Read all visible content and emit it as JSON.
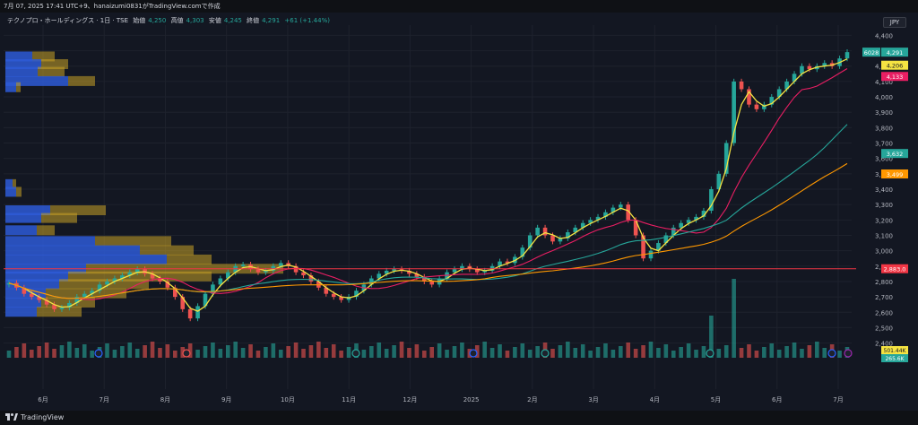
{
  "caption": "7月 07, 2025 17:41 UTC+9、hanaizumi0831がTradingView.comで作成",
  "legend": {
    "symbol": "テクノプロ・ホールディングス · 1日 · TSE",
    "open_label": "始値",
    "open": "4,250",
    "high_label": "高値",
    "high": "4,303",
    "low_label": "安値",
    "low": "4,245",
    "close_label": "終値",
    "close": "4,291",
    "change": "+61 (+1.44%)"
  },
  "currency_button": "JPY",
  "brand": "TradingView",
  "colors": {
    "background": "#131722",
    "grid": "#1e222d",
    "up": "#26a69a",
    "down": "#ef5350",
    "ma_fast": "#f5e342",
    "ma_mid": "#e91e63",
    "ma_slow": "#26a69a",
    "ma_long": "#ff9800",
    "hline": "#f23645",
    "vp_blue": "#2e5bd6",
    "vp_gold": "#c9a227"
  },
  "chart_data": {
    "type": "candlestick",
    "y_ticks": [
      4400,
      4300,
      4200,
      4100,
      4000,
      3900,
      3800,
      3700,
      3600,
      3500,
      3400,
      3300,
      3200,
      3100,
      3000,
      2900,
      2800,
      2700,
      2600,
      2500,
      2400
    ],
    "y_tick_labels": [
      "4,400",
      "4,300",
      "4,200",
      "4,100",
      "4,000",
      "3,900",
      "3,800",
      "3,700",
      "3,600",
      "3,500",
      "3,400",
      "3,300",
      "3,200",
      "3,100",
      "3,000",
      "2,900",
      "2,800",
      "2,700",
      "2,600",
      "2,500",
      "2,400"
    ],
    "ylim": [
      2380,
      4420
    ],
    "x_labels": [
      "6月",
      "7月",
      "8月",
      "9月",
      "10月",
      "11月",
      "12月",
      "2025",
      "2月",
      "3月",
      "4月",
      "5月",
      "6月",
      "7月"
    ],
    "closes": [
      2790,
      2760,
      2720,
      2700,
      2680,
      2650,
      2620,
      2630,
      2660,
      2700,
      2720,
      2740,
      2780,
      2800,
      2820,
      2840,
      2860,
      2880,
      2850,
      2820,
      2800,
      2760,
      2700,
      2620,
      2560,
      2640,
      2720,
      2780,
      2820,
      2860,
      2900,
      2910,
      2880,
      2860,
      2870,
      2900,
      2920,
      2900,
      2860,
      2840,
      2800,
      2760,
      2720,
      2700,
      2680,
      2700,
      2740,
      2780,
      2820,
      2850,
      2870,
      2880,
      2870,
      2850,
      2830,
      2800,
      2780,
      2820,
      2860,
      2880,
      2900,
      2880,
      2860,
      2870,
      2900,
      2930,
      2920,
      2960,
      3020,
      3100,
      3150,
      3100,
      3060,
      3080,
      3120,
      3150,
      3180,
      3200,
      3220,
      3250,
      3280,
      3300,
      3200,
      3100,
      2950,
      3000,
      3050,
      3100,
      3150,
      3180,
      3200,
      3220,
      3260,
      3400,
      3500,
      3700,
      4100,
      4050,
      3950,
      3920,
      3950,
      4000,
      4050,
      4100,
      4150,
      4200,
      4180,
      4200,
      4220,
      4200,
      4250,
      4291
    ],
    "volume_ticks": [
      "501.44K",
      "265.6K"
    ],
    "price_tags": [
      {
        "label": "6028",
        "value": "4,291",
        "color": "#26a69a"
      },
      {
        "value": "4,206",
        "color": "#f5e342"
      },
      {
        "value": "4,133",
        "color": "#e91e63"
      },
      {
        "value": "3,632",
        "color": "#26a69a"
      },
      {
        "value": "3,499",
        "color": "#ff9800"
      },
      {
        "value": "2,883.0",
        "color": "#f23645"
      }
    ],
    "horizontal_line": 2883,
    "grid": true
  }
}
